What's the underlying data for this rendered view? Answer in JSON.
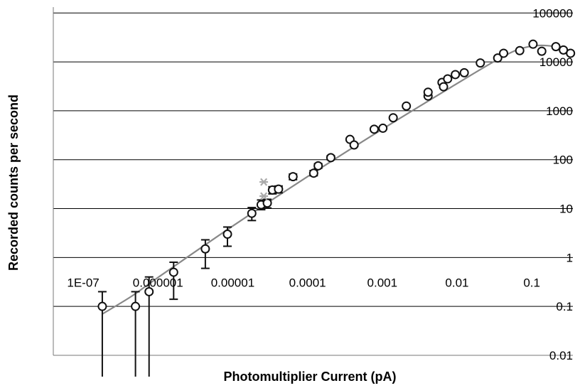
{
  "chart_data": {
    "type": "scatter",
    "title": "",
    "xlabel": "Photomultiplier Current (pA)",
    "ylabel": "Recorded counts per second",
    "x_scale": "log",
    "y_scale": "log",
    "xlim": [
      1e-07,
      1
    ],
    "ylim": [
      0.01,
      100000
    ],
    "grid": "horizontal",
    "legend": "none",
    "x_ticks": [
      1e-07,
      1e-06,
      1e-05,
      0.0001,
      0.001,
      0.01,
      0.1
    ],
    "x_tick_labels": [
      "1E-07",
      "0.000001",
      "0.00001",
      "0.0001",
      "0.001",
      "0.01",
      "0.1"
    ],
    "y_ticks": [
      0.01,
      0.1,
      1,
      10,
      100,
      1000,
      10000,
      100000
    ],
    "y_tick_labels": [
      "0.01",
      "0.1",
      "1",
      "10",
      "100",
      "1000",
      "10000",
      "100000"
    ],
    "colors": {
      "markers": "#111111",
      "fit_line": "#888888",
      "outlier_markers": "#aaaaaa",
      "grid": "#000000"
    },
    "series": [
      {
        "marker": "circle",
        "points": [
          {
            "x": 1.8e-07,
            "y": 0.1,
            "ylow": 0.001,
            "yhigh": 0.2
          },
          {
            "x": 5e-07,
            "y": 0.1,
            "ylow": 0.001,
            "yhigh": 0.2
          },
          {
            "x": 7.6e-07,
            "y": 0.2,
            "ylow": 0.001,
            "yhigh": 0.4
          },
          {
            "x": 1.62e-06,
            "y": 0.5,
            "ylow": 0.14,
            "yhigh": 0.8
          },
          {
            "x": 4.3e-06,
            "y": 1.5,
            "ylow": 0.6,
            "yhigh": 2.3
          },
          {
            "x": 8.5e-06,
            "y": 3,
            "ylow": 1.7,
            "yhigh": 4.2
          },
          {
            "x": 1.8e-05,
            "y": 8,
            "ylow": 5.7,
            "yhigh": 10.5
          },
          {
            "x": 2.4e-05,
            "y": 12,
            "ylow": 9.5,
            "yhigh": 15
          },
          {
            "x": 2.9e-05,
            "y": 13,
            "ylow": 10.3,
            "yhigh": 15.5
          },
          {
            "x": 3.4e-05,
            "y": 24,
            "ylow": 20,
            "yhigh": 28
          },
          {
            "x": 4.1e-05,
            "y": 25,
            "ylow": 21,
            "yhigh": 29
          },
          {
            "x": 6.4e-05,
            "y": 45,
            "ylow": 39,
            "yhigh": 51
          },
          {
            "x": 0.000121,
            "y": 53,
            "ylow": 47,
            "yhigh": 60
          },
          {
            "x": 0.000139,
            "y": 75,
            "ylow": 67,
            "yhigh": 83
          },
          {
            "x": 0.000205,
            "y": 110,
            "ylow": 100,
            "yhigh": 120
          },
          {
            "x": 0.00037,
            "y": 260,
            "ylow": 245,
            "yhigh": 275
          },
          {
            "x": 0.00042,
            "y": 200,
            "ylow": 187,
            "yhigh": 214
          },
          {
            "x": 0.00078,
            "y": 420,
            "ylow": 400,
            "yhigh": 440
          },
          {
            "x": 0.00102,
            "y": 440,
            "ylow": 420,
            "yhigh": 460
          },
          {
            "x": 0.0014,
            "y": 720,
            "ylow": 690,
            "yhigh": 750
          },
          {
            "x": 0.0021,
            "y": 1250,
            "ylow": 1210,
            "yhigh": 1290
          },
          {
            "x": 0.0041,
            "y": 2000,
            "ylow": 1950,
            "yhigh": 2050
          },
          {
            "x": 0.0041,
            "y": 2400,
            "ylow": 2350,
            "yhigh": 2450
          },
          {
            "x": 0.0063,
            "y": 3800,
            "ylow": 3700,
            "yhigh": 3900
          },
          {
            "x": 0.0066,
            "y": 3100,
            "ylow": 3000,
            "yhigh": 3200
          },
          {
            "x": 0.0075,
            "y": 4500,
            "ylow": 4400,
            "yhigh": 4600
          },
          {
            "x": 0.0095,
            "y": 5500,
            "ylow": 5400,
            "yhigh": 5600
          },
          {
            "x": 0.0125,
            "y": 6000,
            "ylow": 5900,
            "yhigh": 6100
          },
          {
            "x": 0.0205,
            "y": 9500,
            "ylow": 9300,
            "yhigh": 9700
          },
          {
            "x": 0.035,
            "y": 12000,
            "ylow": 11800,
            "yhigh": 12200
          },
          {
            "x": 0.042,
            "y": 15000,
            "ylow": 14800,
            "yhigh": 15200
          },
          {
            "x": 0.069,
            "y": 17000,
            "ylow": 16800,
            "yhigh": 17200
          },
          {
            "x": 0.104,
            "y": 23000,
            "ylow": 22700,
            "yhigh": 23300
          },
          {
            "x": 0.136,
            "y": 16500,
            "ylow": 16300,
            "yhigh": 16700
          },
          {
            "x": 0.21,
            "y": 20500,
            "ylow": 20300,
            "yhigh": 20700
          },
          {
            "x": 0.265,
            "y": 17500,
            "ylow": 17300,
            "yhigh": 17700
          },
          {
            "x": 0.33,
            "y": 15000,
            "ylow": 14800,
            "yhigh": 15200
          }
        ]
      },
      {
        "marker": "star",
        "points": [
          {
            "x": 2.6e-05,
            "y": 35
          },
          {
            "x": 2.6e-05,
            "y": 18
          }
        ]
      },
      {
        "marker": "line",
        "points": [
          {
            "x": 1.8e-07,
            "y": 0.07
          },
          {
            "x": 4.4e-07,
            "y": 0.16
          },
          {
            "x": 1e-06,
            "y": 0.39
          },
          {
            "x": 1e-05,
            "y": 4.4
          },
          {
            "x": 0.0001,
            "y": 45
          },
          {
            "x": 0.001,
            "y": 420
          },
          {
            "x": 0.01,
            "y": 3600
          },
          {
            "x": 0.03,
            "y": 9800
          },
          {
            "x": 0.06,
            "y": 17000
          },
          {
            "x": 0.1,
            "y": 21000
          },
          {
            "x": 0.16,
            "y": 21500
          },
          {
            "x": 0.25,
            "y": 19000
          },
          {
            "x": 0.35,
            "y": 15000
          }
        ]
      }
    ]
  }
}
